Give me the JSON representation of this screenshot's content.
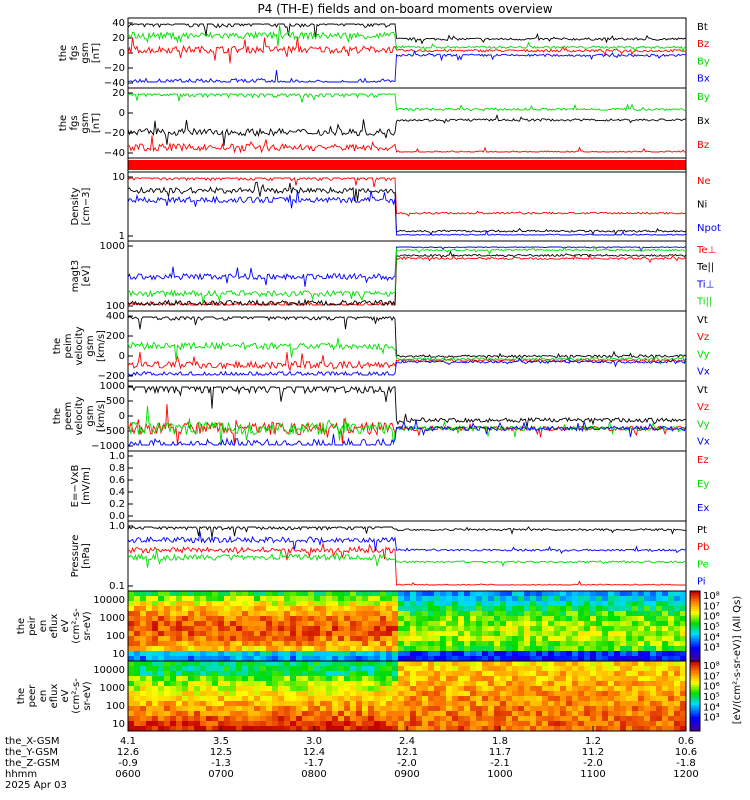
{
  "title": "P4 (TH-E) fields and on-board moments overview",
  "colors": {
    "black": "#000000",
    "red": "#ff0000",
    "green": "#00dd00",
    "blue": "#0000ff"
  },
  "chart_data": {
    "type": "line",
    "x_time_ticks": [
      "0600",
      "0700",
      "0800",
      "0900",
      "1000",
      "1100",
      "1200"
    ],
    "x_rows": [
      {
        "name": "the_X-GSM",
        "values": [
          "4.1",
          "3.5",
          "3.0",
          "2.4",
          "1.8",
          "1.2",
          "0.6"
        ]
      },
      {
        "name": "the_Y-GSM",
        "values": [
          "12.6",
          "12.5",
          "12.4",
          "12.1",
          "11.7",
          "11.2",
          "10.6"
        ]
      },
      {
        "name": "the_Z-GSM",
        "values": [
          "-0.9",
          "-1.3",
          "-1.7",
          "-2.0",
          "-2.1",
          "-2.0",
          "-1.8"
        ]
      },
      {
        "name": "hhmm",
        "values": [
          "0600",
          "0700",
          "0800",
          "0900",
          "1000",
          "1100",
          "1200"
        ]
      }
    ],
    "date_label": "2025 Apr 03",
    "panels": [
      {
        "id": "fgs_gsm",
        "ylabel": [
          "the",
          "fgs",
          "gsm",
          "[nT]"
        ],
        "yticks": [
          "40",
          "20",
          "0",
          "−20",
          "−40"
        ],
        "legend": [
          "Bt",
          "Bz",
          "By",
          "Bx"
        ],
        "series": [
          {
            "name": "Bt",
            "color": "black",
            "before": 35,
            "after": 22
          },
          {
            "name": "Bz",
            "color": "red",
            "before": 13,
            "after": 12
          },
          {
            "name": "By",
            "color": "green",
            "before": 25,
            "after": 15
          },
          {
            "name": "Bx",
            "color": "blue",
            "before": -15,
            "after": 8
          }
        ]
      },
      {
        "id": "fgs_dsl",
        "ylabel": [
          "the",
          "fgs",
          "gsm",
          "[nT]"
        ],
        "yticks": [
          "20",
          "0",
          "−20",
          "−40"
        ],
        "legend": [
          "By",
          "Bx",
          "Bz"
        ],
        "series": [
          {
            "name": "By",
            "color": "green",
            "before": 20,
            "after": 10
          },
          {
            "name": "Bx",
            "color": "black",
            "before": -5,
            "after": 3
          },
          {
            "name": "Bz",
            "color": "red",
            "before": -15,
            "after": -18
          }
        ]
      },
      {
        "id": "density",
        "ylabel": [
          "Density",
          "[cm−3]"
        ],
        "yticks": [
          "10",
          "1"
        ],
        "legend": [
          "Ne",
          "Ni",
          "Npot"
        ],
        "series": [
          {
            "name": "Ne",
            "color": "red",
            "before": 20,
            "after": 1.5
          },
          {
            "name": "Ni",
            "color": "black",
            "before": 8,
            "after": 0.4
          },
          {
            "name": "Npot",
            "color": "blue",
            "before": 4,
            "after": 0.3
          }
        ]
      },
      {
        "id": "temp",
        "ylabel": [
          "magt3",
          "[eV]"
        ],
        "yticks": [
          "1000",
          "100"
        ],
        "legend": [
          "Te⊥",
          "Te||",
          "Ti⊥",
          "Ti||"
        ],
        "series": [
          {
            "name": "Te⊥",
            "color": "red",
            "before": 90,
            "after": 1500
          },
          {
            "name": "Te||",
            "color": "black",
            "before": 100,
            "after": 1800
          },
          {
            "name": "Ti⊥",
            "color": "blue",
            "before": 500,
            "after": 3000
          },
          {
            "name": "Ti||",
            "color": "green",
            "before": 180,
            "after": 2500
          }
        ]
      },
      {
        "id": "peim_vel",
        "ylabel": [
          "the",
          "peim",
          "velocity",
          "gsm",
          "[km/s]"
        ],
        "yticks": [
          "400",
          "200",
          "0",
          "−200"
        ],
        "legend": [
          "Vt",
          "Vz",
          "Vy",
          "Vx"
        ],
        "series": [
          {
            "name": "Vt",
            "color": "black",
            "before": 300,
            "after": 30
          },
          {
            "name": "Vz",
            "color": "red",
            "before": -30,
            "after": 0
          },
          {
            "name": "Vy",
            "color": "green",
            "before": 100,
            "after": 10
          },
          {
            "name": "Vx",
            "color": "blue",
            "before": -100,
            "after": -10
          }
        ]
      },
      {
        "id": "peem_vel",
        "ylabel": [
          "the",
          "peem",
          "velocity",
          "gsm",
          "[km/s]"
        ],
        "yticks": [
          "1000",
          "500",
          "0",
          "−500",
          "−1000"
        ],
        "legend": [
          "Vt",
          "Vz",
          "Vy",
          "Vx"
        ],
        "series": [
          {
            "name": "Vt",
            "color": "black",
            "before": 250,
            "after": 50
          },
          {
            "name": "Vz",
            "color": "red",
            "before": 0,
            "after": 0
          },
          {
            "name": "Vy",
            "color": "green",
            "before": 0,
            "after": 0
          },
          {
            "name": "Vx",
            "color": "blue",
            "before": -100,
            "after": 0
          }
        ]
      },
      {
        "id": "efield",
        "ylabel": [
          "E=−VxB",
          "[mV/m]"
        ],
        "yticks": [
          "1.0",
          "0.8",
          "0.6",
          "0.4",
          "0.2",
          "0.0"
        ],
        "legend": [
          "Ez",
          "Ey",
          "Ex"
        ],
        "series": []
      },
      {
        "id": "pressure",
        "ylabel": [
          "Pressure",
          "[nPa]"
        ],
        "yticks": [
          "1.0",
          "0.1"
        ],
        "legend": [
          "Pt",
          "Pb",
          "Pe",
          "Pi"
        ],
        "series": [
          {
            "name": "Pt",
            "color": "black",
            "before": 1.0,
            "after": 0.9
          },
          {
            "name": "Pb",
            "color": "red",
            "before": 0.4,
            "after": 0.1
          },
          {
            "name": "Pe",
            "color": "green",
            "before": 0.3,
            "after": 0.25
          },
          {
            "name": "Pi",
            "color": "blue",
            "before": 0.6,
            "after": 0.4
          }
        ]
      }
    ],
    "spectrograms": [
      {
        "id": "peir",
        "ylabel": [
          "the",
          "peir",
          "en",
          "eflux",
          "eV",
          "(cm²-s-",
          "sr-eV)"
        ],
        "yticks": [
          "10000",
          "1000",
          "100",
          "10"
        ]
      },
      {
        "id": "peer",
        "ylabel": [
          "the",
          "peer",
          "en",
          "eflux",
          "eV",
          "(cm²-s-",
          "sr-eV)"
        ],
        "yticks": [
          "10000",
          "1000",
          "100",
          "10"
        ]
      }
    ],
    "colorbar": {
      "ticks": [
        "10⁸",
        "10⁷",
        "10⁶",
        "10⁵",
        "10⁴",
        "10³"
      ],
      "label": "[eV/(cm²-s-sr-eV)] (All Qs)"
    },
    "spacecraft_flag_color": "red"
  }
}
